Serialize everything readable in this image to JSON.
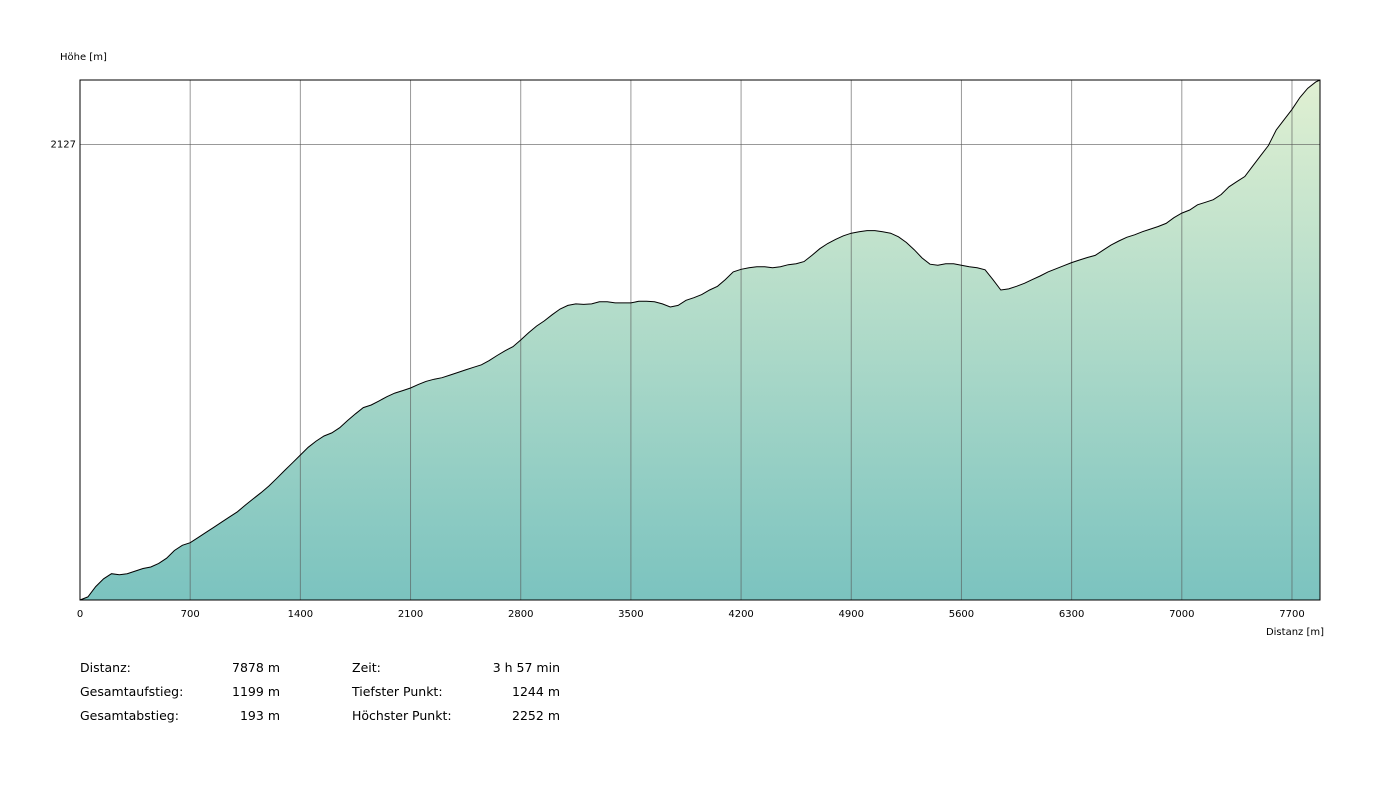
{
  "chart_data": {
    "type": "area",
    "ylabel": "Höhe [m]",
    "xlabel": "Distanz [m]",
    "xlim": [
      0,
      7878
    ],
    "ylim": [
      1244,
      2252
    ],
    "x_ticks": [
      0,
      700,
      1400,
      2100,
      2800,
      3500,
      4200,
      4900,
      5600,
      6300,
      7000,
      7700
    ],
    "y_ticks": [
      2127
    ],
    "grid": true,
    "colors": {
      "fill_top": "#e0f0d2",
      "fill_bottom": "#7bc3bf",
      "line": "#000000",
      "grid": "#555555"
    },
    "series": [
      {
        "x": [
          0,
          50,
          100,
          150,
          200,
          250,
          300,
          350,
          400,
          450,
          500,
          550,
          600,
          650,
          700,
          750,
          800,
          850,
          900,
          950,
          1000,
          1050,
          1100,
          1150,
          1200,
          1250,
          1300,
          1350,
          1400,
          1450,
          1500,
          1550,
          1600,
          1650,
          1700,
          1750,
          1800,
          1850,
          1900,
          1950,
          2000,
          2050,
          2100,
          2150,
          2200,
          2250,
          2300,
          2350,
          2400,
          2450,
          2500,
          2550,
          2600,
          2650,
          2700,
          2750,
          2800,
          2850,
          2900,
          2950,
          3000,
          3050,
          3100,
          3150,
          3200,
          3250,
          3300,
          3350,
          3400,
          3450,
          3500,
          3550,
          3600,
          3650,
          3700,
          3750,
          3800,
          3850,
          3900,
          3950,
          4000,
          4050,
          4100,
          4150,
          4200,
          4250,
          4300,
          4350,
          4400,
          4450,
          4500,
          4550,
          4600,
          4650,
          4700,
          4750,
          4800,
          4850,
          4900,
          4950,
          5000,
          5050,
          5100,
          5150,
          5200,
          5250,
          5300,
          5350,
          5400,
          5450,
          5500,
          5550,
          5600,
          5650,
          5700,
          5750,
          5800,
          5850,
          5900,
          5950,
          6000,
          6050,
          6100,
          6150,
          6200,
          6250,
          6300,
          6350,
          6400,
          6450,
          6500,
          6550,
          6600,
          6650,
          6700,
          6750,
          6800,
          6850,
          6900,
          6950,
          7000,
          7050,
          7100,
          7150,
          7200,
          7250,
          7300,
          7350,
          7400,
          7450,
          7500,
          7550,
          7600,
          7650,
          7700,
          7750,
          7800,
          7850,
          7878
        ],
        "y": [
          1244,
          1250,
          1270,
          1285,
          1295,
          1293,
          1295,
          1300,
          1305,
          1308,
          1315,
          1325,
          1340,
          1350,
          1355,
          1365,
          1375,
          1385,
          1395,
          1405,
          1415,
          1428,
          1440,
          1452,
          1465,
          1480,
          1495,
          1510,
          1525,
          1540,
          1552,
          1562,
          1568,
          1578,
          1592,
          1605,
          1617,
          1622,
          1630,
          1638,
          1645,
          1650,
          1655,
          1662,
          1668,
          1672,
          1675,
          1680,
          1685,
          1690,
          1695,
          1700,
          1708,
          1718,
          1727,
          1735,
          1748,
          1762,
          1775,
          1785,
          1797,
          1808,
          1815,
          1818,
          1817,
          1818,
          1822,
          1822,
          1820,
          1820,
          1820,
          1823,
          1823,
          1822,
          1818,
          1812,
          1815,
          1825,
          1830,
          1836,
          1845,
          1852,
          1865,
          1880,
          1885,
          1888,
          1890,
          1890,
          1888,
          1890,
          1894,
          1896,
          1900,
          1912,
          1925,
          1935,
          1943,
          1950,
          1955,
          1958,
          1960,
          1960,
          1958,
          1955,
          1948,
          1937,
          1923,
          1907,
          1895,
          1893,
          1896,
          1896,
          1893,
          1890,
          1888,
          1884,
          1865,
          1845,
          1847,
          1852,
          1858,
          1865,
          1872,
          1880,
          1886,
          1892,
          1898,
          1903,
          1908,
          1912,
          1922,
          1932,
          1940,
          1947,
          1952,
          1958,
          1963,
          1968,
          1974,
          1985,
          1994,
          2000,
          2010,
          2015,
          2020,
          2030,
          2045,
          2055,
          2065,
          2085,
          2105,
          2125,
          2155,
          2175,
          2195,
          2218,
          2236,
          2248,
          2252
        ]
      }
    ]
  },
  "stats": {
    "col1": [
      {
        "label": "Distanz:",
        "value": "7878 m"
      },
      {
        "label": "Gesamtaufstieg:",
        "value": "1199 m"
      },
      {
        "label": "Gesamtabstieg:",
        "value": "193 m"
      }
    ],
    "col2": [
      {
        "label": "Zeit:",
        "value": "3 h 57 min"
      },
      {
        "label": "Tiefster Punkt:",
        "value": "1244 m"
      },
      {
        "label": "Höchster Punkt:",
        "value": "2252 m"
      }
    ]
  }
}
